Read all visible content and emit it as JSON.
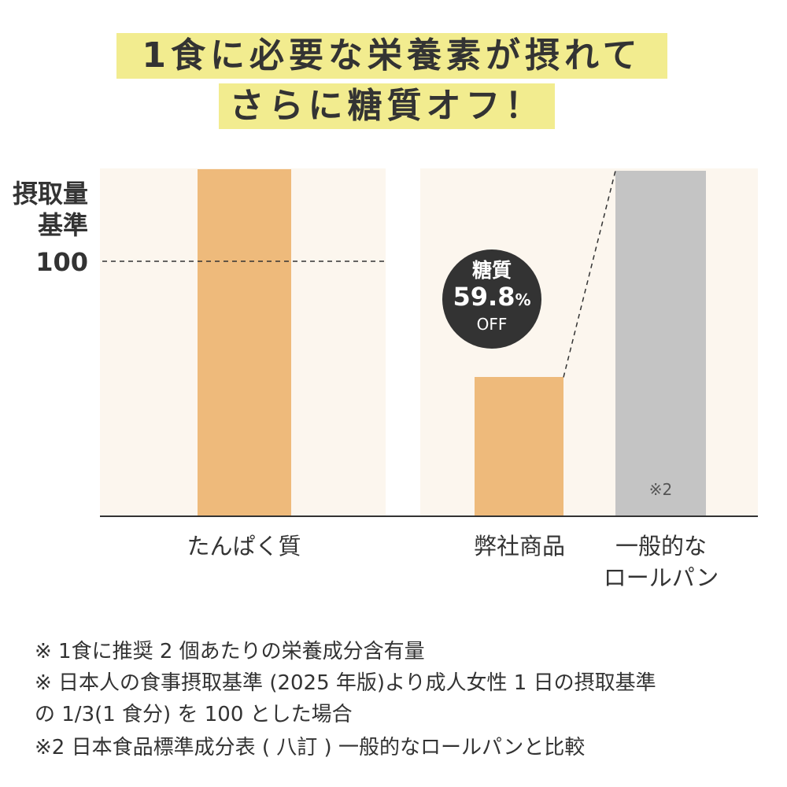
{
  "title": {
    "line1": "1食に必要な栄養素が摂れて",
    "line2": "さらに糖質オフ！"
  },
  "colors": {
    "highlight": "#f2ec8f",
    "orange_bar": "#eeba7b",
    "gray_bar": "#c4c4c4",
    "panel_bg": "#fcf6ee",
    "badge": "#333333"
  },
  "chart_data": {
    "type": "bar",
    "ylabel": "摂取量基準",
    "ylabel_lines": [
      "摂取量",
      "基準"
    ],
    "reference_line": {
      "value": 100,
      "label": "100"
    },
    "groups": [
      {
        "categories": [
          "たんぱく質"
        ],
        "values": [
          136
        ]
      },
      {
        "categories": [
          "弊社商品",
          "一般的なロールパン"
        ],
        "category_lines": [
          [
            "弊社商品"
          ],
          [
            "一般的な",
            "ロールパン"
          ]
        ],
        "values": [
          54.5,
          135.5
        ],
        "bar_note": [
          "",
          "※2"
        ]
      }
    ],
    "annotation": {
      "label": "糖質",
      "value": "59.8",
      "unit": "%",
      "suffix": "OFF"
    }
  },
  "footnotes": [
    "※ 1食に推奨 2 個あたりの栄養成分含有量",
    "※ 日本人の食事摂取基準 (2025 年版)より成人女性 1 日の摂取基準",
    "の 1/3(1 食分) を 100 とした場合",
    "※2 日本食品標準成分表 ( 八訂 ) 一般的なロールパンと比較"
  ]
}
